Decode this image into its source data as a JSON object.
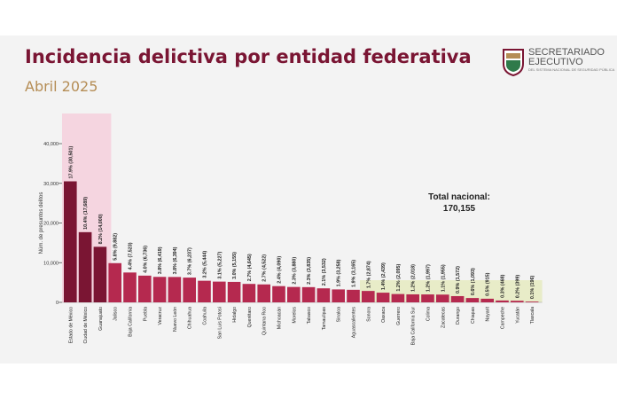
{
  "header": {
    "title": "Incidencia delictiva por entidad federativa",
    "subtitle": "Abril 2025"
  },
  "logo": {
    "name_line1": "SECRETARIADO",
    "name_line2": "EJECUTIVO",
    "tagline": "DEL SISTEMA NACIONAL DE SEGURIDAD PÚBLICA",
    "icon": "seal-icon"
  },
  "total": {
    "label": "Total nacional:",
    "value": "170,155"
  },
  "colors": {
    "title": "#7a1533",
    "subtitle": "#b58d55",
    "bar_top": "#7a1533",
    "bar_rest": "#b5294f",
    "band_top": "#f5d5e0",
    "band_bottom": "#e8ecc8"
  },
  "chart_data": {
    "type": "bar",
    "title": "Incidencia delictiva por entidad federativa",
    "subtitle": "Abril 2025",
    "ylabel": "Núm. de presuntos delitos",
    "ylim": [
      0,
      40000
    ],
    "yticks": [
      0,
      10000,
      20000,
      30000,
      40000
    ],
    "ytick_labels": [
      "0",
      "10,000",
      "20,000",
      "30,000",
      "40,000"
    ],
    "grid": false,
    "categories": [
      "Estado de México",
      "Ciudad de México",
      "Guanajuato",
      "Jalisco",
      "Baja California",
      "Puebla",
      "Veracruz",
      "Nuevo León",
      "Chihuahua",
      "Coahuila",
      "San Luis Potosí",
      "Hidalgo",
      "Querétaro",
      "Quintana Roo",
      "Michoacán",
      "Morelos",
      "Tabasco",
      "Tamaulipas",
      "Sinaloa",
      "Aguascalientes",
      "Sonora",
      "Oaxaca",
      "Guerrero",
      "Baja California Sur",
      "Colima",
      "Zacatecas",
      "Durango",
      "Chiapas",
      "Nayarit",
      "Campeche",
      "Yucatán",
      "Tlaxcala"
    ],
    "values": [
      30501,
      17689,
      14000,
      9882,
      7523,
      6736,
      6419,
      6394,
      6237,
      5444,
      5227,
      5155,
      4645,
      4522,
      4090,
      3880,
      3835,
      3532,
      3258,
      3165,
      2874,
      2439,
      2095,
      2018,
      1997,
      1955,
      1572,
      1093,
      915,
      468,
      399,
      196
    ],
    "data_labels": [
      "17.9% (30,501)",
      "10.4% (17,689)",
      "8.2% (14,000)",
      "5.8% (9,882)",
      "4.4% (7,523)",
      "4.0% (6,736)",
      "3.8% (6,419)",
      "3.8% (6,394)",
      "3.7% (6,237)",
      "3.2% (5,444)",
      "3.1% (5,227)",
      "3.0% (5,155)",
      "2.7% (4,645)",
      "2.7% (4,522)",
      "2.4% (4,090)",
      "2.3% (3,880)",
      "2.3% (3,835)",
      "2.1% (3,532)",
      "1.9% (3,258)",
      "1.9% (3,165)",
      "1.7% (2,874)",
      "1.4% (2,439)",
      "1.2% (2,095)",
      "1.2% (2,018)",
      "1.2% (1,997)",
      "1.1% (1,955)",
      "0.9% (1,572)",
      "0.6% (1,093)",
      "0.5% (915)",
      "0.3% (468)",
      "0.2% (399)",
      "0.1% (196)"
    ],
    "highlight_top_count": 3,
    "highlight_bottom_from": 20
  }
}
